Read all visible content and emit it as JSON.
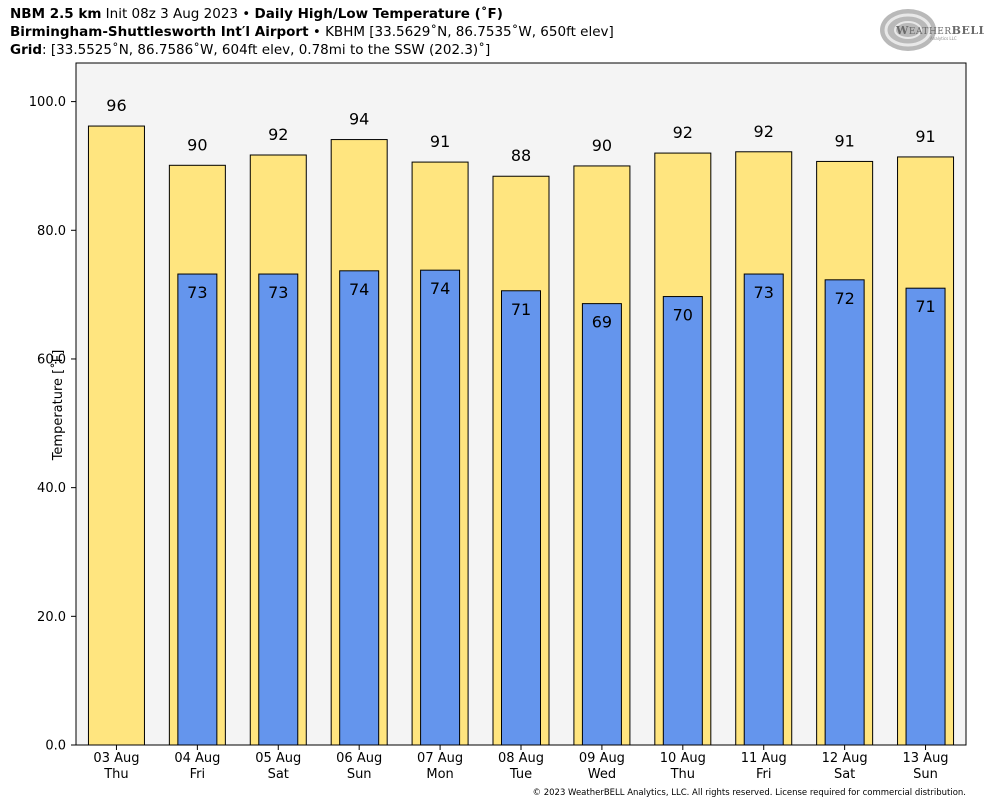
{
  "header": {
    "line1": {
      "bold_a": "NBM 2.5 km",
      "plain_a": " Init 08z 3 Aug 2023 • ",
      "bold_b": "Daily High/Low Temperature (˚F)"
    },
    "line2": {
      "bold_a": "Birmingham-Shuttlesworth Int′l Airport",
      "plain_a": " • KBHM [33.5629˚N, 86.7535˚W, 650ft elev]"
    },
    "line3": {
      "bold_a": "Grid",
      "plain_a": ": [33.5525˚N, 86.7586˚W, 604ft elev, 0.78mi to the SSW (202.3)˚]"
    }
  },
  "logo": {
    "text_a": "W",
    "text_b": "EATHER",
    "text_c": "BELL",
    "sub": "Analytics LLC"
  },
  "footer": "© 2023 WeatherBELL Analytics, LLC. All rights reserved. License required for commercial distribution.",
  "colors": {
    "high": "#ffe57f",
    "low": "#6495ed",
    "plot_bg": "#f4f4f4"
  },
  "chart_data": {
    "type": "bar",
    "ylabel": "Temperature [˚F]",
    "ylim": [
      0,
      106
    ],
    "yticks": [
      "0.0",
      "20.0",
      "40.0",
      "60.0",
      "80.0",
      "100.0"
    ],
    "ytick_values": [
      0,
      20,
      40,
      60,
      80,
      100
    ],
    "categories": [
      "03 Aug",
      "04 Aug",
      "05 Aug",
      "06 Aug",
      "07 Aug",
      "08 Aug",
      "09 Aug",
      "10 Aug",
      "11 Aug",
      "12 Aug",
      "13 Aug"
    ],
    "weekdays": [
      "Thu",
      "Fri",
      "Sat",
      "Sun",
      "Mon",
      "Tue",
      "Wed",
      "Thu",
      "Fri",
      "Sat",
      "Sun"
    ],
    "series": [
      {
        "values": [
          96.2,
          90.1,
          91.7,
          94.1,
          90.6,
          88.4,
          90.0,
          92.0,
          92.2,
          90.7,
          91.4
        ],
        "labels": [
          "96",
          "90",
          "92",
          "94",
          "91",
          "88",
          "90",
          "92",
          "92",
          "91",
          "91"
        ]
      },
      {
        "values": [
          null,
          73.2,
          73.2,
          73.7,
          73.8,
          70.6,
          68.6,
          69.7,
          73.2,
          72.3,
          71.0
        ],
        "labels": [
          null,
          "73",
          "73",
          "74",
          "74",
          "71",
          "69",
          "70",
          "73",
          "72",
          "71"
        ]
      }
    ],
    "grid": false,
    "legend": "none"
  }
}
